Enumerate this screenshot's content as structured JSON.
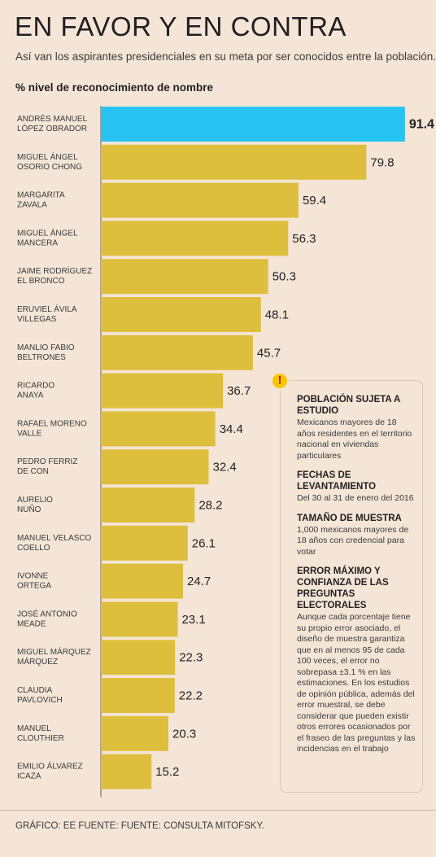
{
  "header": {
    "title": "EN FAVOR Y EN CONTRA",
    "subtitle": "Así van los aspirantes presidenciales en su meta por ser conocidos entre la población."
  },
  "chart_data": {
    "type": "bar",
    "orientation": "horizontal",
    "ylabel": "% nivel de reconocimiento de nombre",
    "categories": [
      [
        "ANDRÉS MANUEL",
        "LÓPEZ OBRADOR"
      ],
      [
        "MIGUEL ÁNGEL",
        "OSORIO CHONG"
      ],
      [
        "MARGARITA",
        "ZAVALA"
      ],
      [
        "MIGUEL ÁNGEL",
        "MANCERA"
      ],
      [
        "JAIME RODRÍGUEZ",
        "EL BRONCO"
      ],
      [
        "ERUVIEL ÁVILA",
        "VILLEGAS"
      ],
      [
        "MANLIO FABIO",
        "BELTRONES"
      ],
      [
        "RICARDO",
        "ANAYA"
      ],
      [
        "RAFAEL MORENO",
        "VALLE"
      ],
      [
        "PEDRO FERRIZ",
        "DE CON"
      ],
      [
        "AURELIO",
        "NUÑO"
      ],
      [
        "MANUEL VELASCO",
        "COELLO"
      ],
      [
        "IVONNE",
        "ORTEGA"
      ],
      [
        "JOSÉ ANTONIO",
        "MEADE"
      ],
      [
        "MIGUEL MÁRQUEZ",
        "MÁRQUEZ"
      ],
      [
        "CLAUDIA",
        "PAVLOVICH"
      ],
      [
        "MANUEL",
        "CLOUTHIER"
      ],
      [
        "EMILIO ÁLVAREZ",
        "ICAZA"
      ]
    ],
    "values": [
      91.4,
      79.8,
      59.4,
      56.3,
      50.3,
      48.1,
      45.7,
      36.7,
      34.4,
      32.4,
      28.2,
      26.1,
      24.7,
      23.1,
      22.3,
      22.2,
      20.3,
      15.2
    ],
    "value_labels": [
      "91.4",
      "79.8",
      "59.4",
      "56.3",
      "50.3",
      "48.1",
      "45.7",
      "36.7",
      "34.4",
      "32.4",
      "28.2",
      "26.1",
      "24.7",
      "23.1",
      "22.3",
      "22.2",
      "20.3",
      "15.2"
    ],
    "highlight_index": 0,
    "colors": {
      "bar": "#ddbf3d",
      "highlight": "#27c4f3",
      "axis": "#6b5e55"
    },
    "xlim": [
      0,
      100
    ],
    "grid": false,
    "legend": "none"
  },
  "notes": {
    "icon": "warning-icon",
    "icon_glyph": "!",
    "items": [
      {
        "heading": "POBLACIÓN SUJETA A ESTUDIO",
        "body": "Mexicanos mayores de 18 años residentes en el territorio nacional en viviendas particulares"
      },
      {
        "heading": "FECHAS DE LEVANTAMIENTO",
        "body": "Del 30 al 31 de enero del 2016"
      },
      {
        "heading": "TAMAÑO DE MUESTRA",
        "body": "1,000 mexicanos mayores de 18 años con credencial para votar"
      },
      {
        "heading": "ERROR MÁXIMO Y CONFIANZA DE LAS PREGUNTAS ELECTORALES",
        "body": "Aunque cada porcentaje tiene su propio error asociado, el diseño de muestra garantiza que en al menos 95 de cada 100 veces, el error no sobrepasa ±3.1 % en las estimaciones. En los estudios de opinión pública, además del error muestral, se debe considerar que pueden existir otros errores ocasionados por el fraseo de las preguntas y las incidencias en el trabajo"
      }
    ]
  },
  "footer": {
    "source": "GRÁFICO: EE FUENTE: FUENTE: CONSULTA MITOFSKY."
  }
}
